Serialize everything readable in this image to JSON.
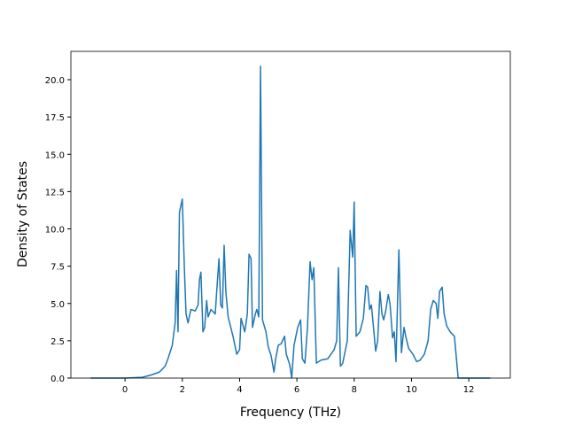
{
  "chart_data": {
    "type": "line",
    "x_label": "Frequency (THz)",
    "y_label": "Density of States",
    "xlim": [
      -1.89,
      13.45
    ],
    "ylim": [
      0,
      21.9
    ],
    "xticks": [
      0,
      2,
      4,
      6,
      8,
      10,
      12
    ],
    "yticks": [
      {
        "value": 0,
        "label": "0.0"
      },
      {
        "value": 2.5,
        "label": "2.5"
      },
      {
        "value": 5,
        "label": "5.0"
      },
      {
        "value": 7.5,
        "label": "7.5"
      },
      {
        "value": 10,
        "label": "10.0"
      },
      {
        "value": 12.5,
        "label": "12.5"
      },
      {
        "value": 15,
        "label": "15.0"
      },
      {
        "value": 17.5,
        "label": "17.5"
      },
      {
        "value": 20,
        "label": "20.0"
      }
    ],
    "grid": false,
    "series": [
      {
        "color": "#1f77b4",
        "x": [
          -1.2,
          0,
          0.6,
          0.9,
          1.2,
          1.4,
          1.5,
          1.65,
          1.75,
          1.8,
          1.85,
          1.9,
          2.0,
          2.07,
          2.13,
          2.2,
          2.3,
          2.45,
          2.55,
          2.6,
          2.65,
          2.72,
          2.78,
          2.85,
          2.9,
          3.0,
          3.15,
          3.2,
          3.28,
          3.34,
          3.4,
          3.46,
          3.52,
          3.6,
          3.77,
          3.9,
          4.0,
          4.05,
          4.18,
          4.27,
          4.33,
          4.4,
          4.45,
          4.55,
          4.6,
          4.67,
          4.73,
          4.8,
          4.92,
          5.0,
          5.1,
          5.2,
          5.26,
          5.35,
          5.45,
          5.57,
          5.63,
          5.75,
          5.82,
          5.9,
          6.03,
          6.13,
          6.19,
          6.28,
          6.37,
          6.46,
          6.53,
          6.59,
          6.68,
          6.84,
          7.08,
          7.3,
          7.39,
          7.45,
          7.52,
          7.6,
          7.76,
          7.86,
          7.95,
          8.0,
          8.07,
          8.2,
          8.32,
          8.41,
          8.47,
          8.54,
          8.6,
          8.66,
          8.75,
          8.82,
          8.9,
          8.97,
          9.03,
          9.1,
          9.19,
          9.25,
          9.34,
          9.4,
          9.46,
          9.56,
          9.65,
          9.74,
          9.8,
          9.9,
          10.05,
          10.18,
          10.3,
          10.45,
          10.58,
          10.67,
          10.76,
          10.86,
          10.92,
          10.98,
          11.07,
          11.14,
          11.23,
          11.35,
          11.5,
          11.63,
          12.75
        ],
        "values": [
          0,
          0,
          0.05,
          0.2,
          0.4,
          0.8,
          1.3,
          2.2,
          3.7,
          7.2,
          3.1,
          11.1,
          12.0,
          7.5,
          4.3,
          3.7,
          4.6,
          4.5,
          4.9,
          6.6,
          7.1,
          3.1,
          3.4,
          5.2,
          4.1,
          4.6,
          4.3,
          5.8,
          8.0,
          4.9,
          4.7,
          8.9,
          5.8,
          4.1,
          2.8,
          1.6,
          1.9,
          4.0,
          3.1,
          4.3,
          8.3,
          8.0,
          3.4,
          4.3,
          4.6,
          4.1,
          20.9,
          3.9,
          3.1,
          2.1,
          1.5,
          0.4,
          1.3,
          2.2,
          2.3,
          2.8,
          1.6,
          0.9,
          0,
          2.2,
          3.4,
          3.9,
          1.3,
          1.0,
          3.4,
          7.8,
          6.6,
          7.4,
          1.0,
          1.2,
          1.3,
          1.9,
          2.5,
          7.4,
          0.8,
          1.0,
          2.5,
          9.9,
          8.1,
          11.8,
          2.8,
          3.1,
          4.0,
          6.2,
          6.1,
          4.6,
          4.9,
          3.7,
          1.8,
          2.5,
          5.8,
          4.3,
          3.9,
          4.5,
          5.6,
          5.0,
          2.7,
          3.1,
          1.1,
          8.6,
          1.7,
          3.4,
          2.8,
          2.0,
          1.6,
          1.1,
          1.2,
          1.6,
          2.5,
          4.6,
          5.2,
          5.0,
          4.0,
          5.8,
          6.1,
          4.3,
          3.5,
          3.1,
          2.8,
          0,
          0
        ]
      }
    ]
  }
}
